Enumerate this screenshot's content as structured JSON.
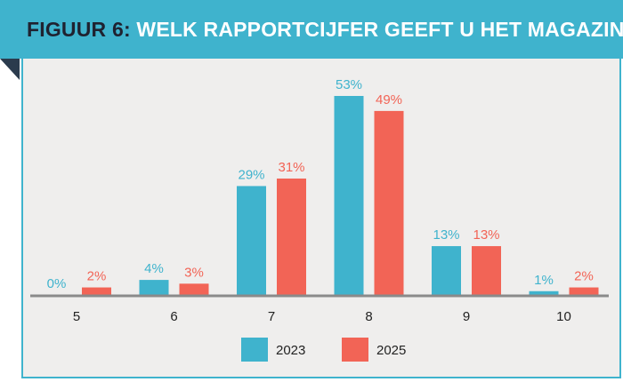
{
  "header": {
    "label": "FIGUUR 6:",
    "question": "WELK RAPPORTCIJFER GEEFT U HET MAGAZINE?"
  },
  "colors": {
    "banner": "#3fb3cd",
    "series_2023": "#3fb3cd",
    "series_2025": "#f26456",
    "panel": "#efeeed",
    "axis": "#8a8a8a"
  },
  "chart_data": {
    "type": "bar",
    "title": "WELK RAPPORTCIJFER GEEFT U HET MAGAZINE?",
    "categories": [
      "5",
      "6",
      "7",
      "8",
      "9",
      "10"
    ],
    "series": [
      {
        "name": "2023",
        "values": [
          0,
          4,
          29,
          53,
          13,
          1
        ],
        "labels": [
          "0%",
          "4%",
          "29%",
          "53%",
          "13%",
          "1%"
        ]
      },
      {
        "name": "2025",
        "values": [
          2,
          3,
          31,
          49,
          13,
          2
        ],
        "labels": [
          "2%",
          "3%",
          "31%",
          "49%",
          "13%",
          "2%"
        ]
      }
    ],
    "unit": "%",
    "ylim": [
      0,
      53
    ],
    "grid": false,
    "legend": "bottom-center"
  }
}
